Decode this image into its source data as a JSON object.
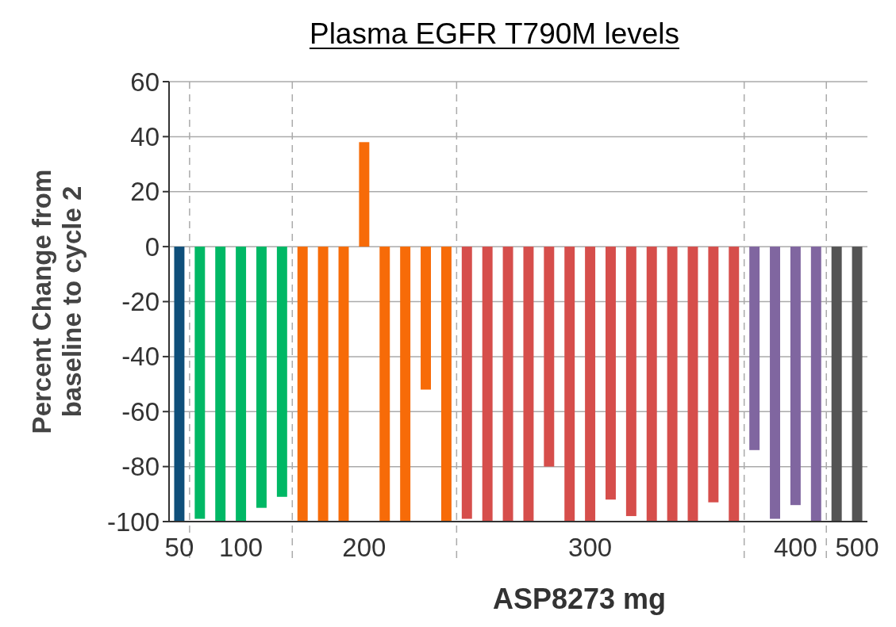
{
  "chart_data": {
    "type": "bar",
    "title": "Plasma EGFR T790M levels",
    "xlabel": "ASP8273 mg",
    "ylabel": "Percent Change from baseline to cycle 2",
    "categories": [
      "50",
      null,
      null,
      "100",
      null,
      null,
      null,
      null,
      null,
      "200",
      null,
      null,
      null,
      null,
      null,
      null,
      null,
      null,
      null,
      null,
      "300",
      null,
      null,
      null,
      null,
      null,
      null,
      null,
      null,
      null,
      "400",
      null,
      null,
      "500"
    ],
    "values": [
      -100,
      -99,
      -100,
      -100,
      -95,
      -91,
      -100,
      -100,
      -100,
      38,
      -100,
      -100,
      -52,
      -100,
      -99,
      -100,
      -100,
      -100,
      -80,
      -100,
      -100,
      -92,
      -98,
      -100,
      -100,
      -100,
      -93,
      -100,
      -74,
      -99,
      -94,
      -100,
      -100,
      -100
    ],
    "colors": [
      "#0e4f7a",
      "#00b865",
      "#00b865",
      "#00b865",
      "#00b865",
      "#00b865",
      "#f76b08",
      "#f76b08",
      "#f76b08",
      "#f76b08",
      "#f76b08",
      "#f76b08",
      "#f76b08",
      "#f76b08",
      "#d64e4b",
      "#d64e4b",
      "#d64e4b",
      "#d64e4b",
      "#d64e4b",
      "#d64e4b",
      "#d64e4b",
      "#d64e4b",
      "#d64e4b",
      "#d64e4b",
      "#d64e4b",
      "#d64e4b",
      "#d64e4b",
      "#d64e4b",
      "#8066a0",
      "#8066a0",
      "#8066a0",
      "#8066a0",
      "#545454",
      "#545454"
    ],
    "ylim": [
      -100,
      60
    ],
    "yticks": [
      -100,
      -80,
      -60,
      -40,
      -20,
      0,
      20,
      40,
      60
    ],
    "grid": "y"
  }
}
